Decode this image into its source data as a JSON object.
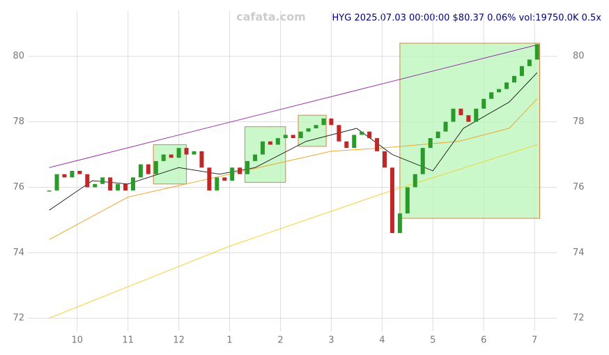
{
  "chart_data": {
    "type": "candlestick",
    "watermark": "cafata.com",
    "title": "HYG 2025.07.03 00:00:00 $80.37 0.06% vol:19750.0K 0.5x",
    "xlim": [
      -0.97,
      9.45
    ],
    "ylim": [
      71.6,
      81.4
    ],
    "xticks": [
      {
        "value": 0,
        "label": "10"
      },
      {
        "value": 1,
        "label": "11"
      },
      {
        "value": 2,
        "label": "12"
      },
      {
        "value": 3,
        "label": "1"
      },
      {
        "value": 4,
        "label": "2"
      },
      {
        "value": 5,
        "label": "3"
      },
      {
        "value": 6,
        "label": "4"
      },
      {
        "value": 7,
        "label": "5"
      },
      {
        "value": 8,
        "label": "6"
      },
      {
        "value": 9,
        "label": "7"
      }
    ],
    "yticks": [
      72,
      74,
      76,
      78,
      80
    ],
    "grid": true,
    "up_color": "#2a9a2a",
    "down_color": "#c02828",
    "x": [
      -0.55,
      -0.4,
      -0.25,
      -0.1,
      0.05,
      0.2,
      0.35,
      0.5,
      0.65,
      0.8,
      0.95,
      1.1,
      1.25,
      1.4,
      1.55,
      1.7,
      1.85,
      2.0,
      2.15,
      2.3,
      2.45,
      2.6,
      2.75,
      2.9,
      3.05,
      3.2,
      3.35,
      3.5,
      3.65,
      3.8,
      3.95,
      4.1,
      4.25,
      4.4,
      4.55,
      4.7,
      4.85,
      5.0,
      5.15,
      5.3,
      5.45,
      5.6,
      5.75,
      5.9,
      6.05,
      6.2,
      6.35,
      6.5,
      6.65,
      6.8,
      6.95,
      7.1,
      7.25,
      7.4,
      7.55,
      7.7,
      7.85,
      8.0,
      8.15,
      8.3,
      8.45,
      8.6,
      8.75,
      8.9,
      9.05
    ],
    "close": [
      75.9,
      76.4,
      76.3,
      76.5,
      76.4,
      76.0,
      76.1,
      76.3,
      75.9,
      76.1,
      75.9,
      76.3,
      76.7,
      76.4,
      76.8,
      77.0,
      76.9,
      77.2,
      77.0,
      77.1,
      76.6,
      75.9,
      76.3,
      76.2,
      76.6,
      76.4,
      76.8,
      77.0,
      77.4,
      77.3,
      77.5,
      77.6,
      77.5,
      77.7,
      77.8,
      77.9,
      78.1,
      77.9,
      77.4,
      77.2,
      77.6,
      77.7,
      77.5,
      77.1,
      76.6,
      74.6,
      75.2,
      76.0,
      76.4,
      77.2,
      77.5,
      77.7,
      78.0,
      78.4,
      78.2,
      78.0,
      78.4,
      78.7,
      78.9,
      79.0,
      79.2,
      79.4,
      79.7,
      79.9,
      80.37
    ],
    "lines": [
      {
        "color": "#f0d020",
        "x": [
          -0.55,
          3.0,
          6.0,
          9.05
        ],
        "values": [
          72.0,
          74.2,
          75.8,
          77.3
        ]
      },
      {
        "color": "#f0a020",
        "x": [
          -0.55,
          1.0,
          3.0,
          5.0,
          6.0,
          7.5,
          8.5,
          9.05
        ],
        "values": [
          74.4,
          75.7,
          76.4,
          77.1,
          77.2,
          77.4,
          77.8,
          78.7
        ]
      },
      {
        "color": "#111111",
        "x": [
          -0.55,
          0.3,
          1.0,
          2.0,
          2.8,
          3.5,
          4.5,
          5.5,
          6.2,
          7.0,
          7.6,
          8.5,
          9.05
        ],
        "values": [
          75.3,
          76.2,
          76.1,
          76.6,
          76.4,
          76.6,
          77.4,
          77.8,
          77.0,
          76.5,
          77.8,
          78.6,
          79.5
        ]
      },
      {
        "color": "#9020a0",
        "x": [
          -0.55,
          9.05
        ],
        "values": [
          76.6,
          80.35
        ]
      }
    ],
    "boxes": [
      {
        "x": [
          1.5,
          2.15
        ],
        "values": [
          76.1,
          77.3
        ]
      },
      {
        "x": [
          3.3,
          4.1
        ],
        "values": [
          76.15,
          77.85
        ]
      },
      {
        "x": [
          4.35,
          4.9
        ],
        "values": [
          77.25,
          78.2
        ]
      },
      {
        "x": [
          6.35,
          9.1
        ],
        "values": [
          75.05,
          80.4
        ]
      }
    ]
  }
}
